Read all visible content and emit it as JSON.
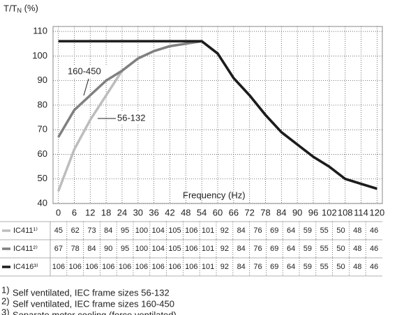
{
  "chart_data": {
    "type": "line",
    "ylabel": "T/TN (%)",
    "xlabel": "Frequency (Hz)",
    "x": [
      0,
      6,
      12,
      18,
      24,
      30,
      36,
      42,
      48,
      54,
      60,
      66,
      72,
      78,
      84,
      90,
      96,
      102,
      108,
      114,
      120
    ],
    "series": [
      {
        "name": "IC411¹⁾",
        "color": "#bdbdbd",
        "values": [
          45,
          62,
          74,
          84,
          94,
          99,
          102,
          104,
          105,
          106,
          101,
          91,
          84,
          76,
          69,
          64,
          59,
          55,
          50,
          48,
          46
        ]
      },
      {
        "name": "IC411²⁾",
        "color": "#808080",
        "values": [
          67,
          78,
          84,
          90,
          94,
          99,
          102,
          104,
          105,
          106,
          101,
          91,
          84,
          76,
          69,
          64,
          59,
          55,
          50,
          48,
          46
        ]
      },
      {
        "name": "IC416³⁾",
        "color": "#1c1c1c",
        "values": [
          106,
          106,
          106,
          106,
          106,
          106,
          106,
          106,
          106,
          106,
          101,
          91,
          84,
          76,
          69,
          64,
          59,
          55,
          50,
          48,
          46
        ]
      }
    ],
    "annotations": [
      "160-450",
      "56-132"
    ],
    "xlim": [
      -2,
      122
    ],
    "ylim": [
      40,
      112
    ],
    "xticks": [
      0,
      6,
      12,
      18,
      24,
      30,
      36,
      42,
      48,
      54,
      60,
      66,
      72,
      78,
      84,
      90,
      96,
      102,
      108,
      114,
      120
    ],
    "yticks": [
      40,
      50,
      60,
      70,
      80,
      90,
      100,
      110
    ],
    "grid": true
  },
  "table": {
    "rows": [
      [
        45,
        62,
        73,
        84,
        95,
        100,
        104,
        105,
        106,
        101,
        92,
        84,
        76,
        69,
        64,
        59,
        55,
        50,
        48,
        46
      ],
      [
        67,
        78,
        84,
        90,
        95,
        100,
        104,
        105,
        106,
        101,
        92,
        84,
        76,
        69,
        64,
        59,
        55,
        50,
        48,
        46
      ],
      [
        106,
        106,
        106,
        106,
        106,
        106,
        106,
        106,
        106,
        101,
        92,
        84,
        76,
        69,
        64,
        59,
        55,
        50,
        48,
        46
      ]
    ]
  },
  "footnotes": [
    {
      "marker": "1)",
      "text": "Self ventilated, IEC frame sizes 56-132"
    },
    {
      "marker": "2)",
      "text": "Self ventilated, IEC frame sizes 160-450"
    },
    {
      "marker": "3)",
      "text": "Separate motor cooling (force ventilated)"
    }
  ]
}
